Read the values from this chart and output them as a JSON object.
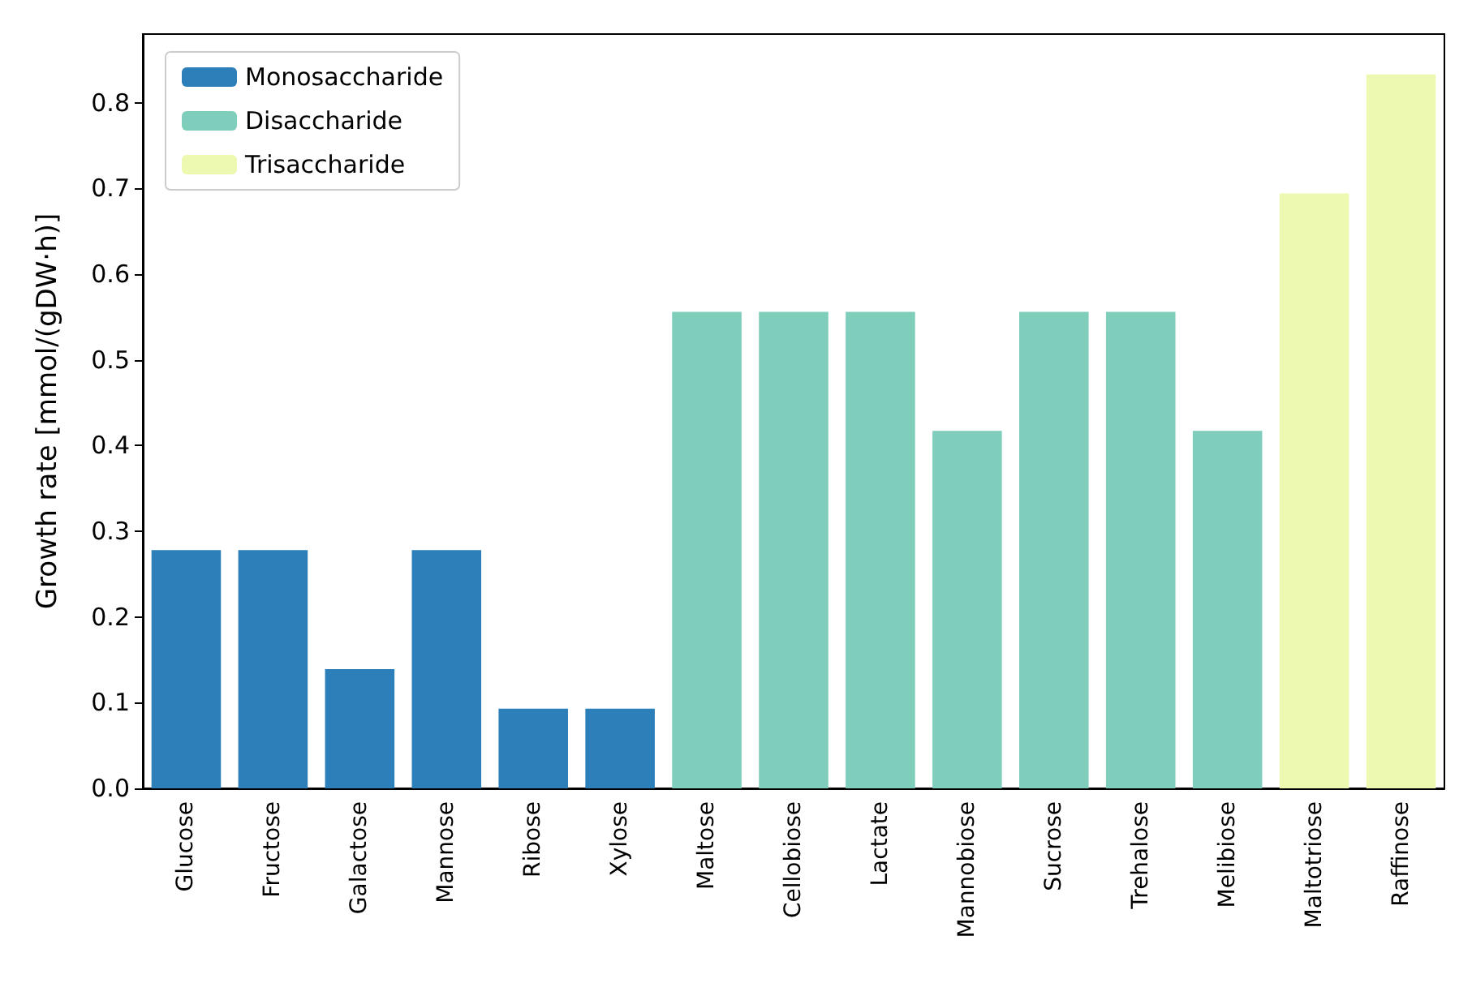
{
  "chart_data": {
    "type": "bar",
    "ylabel": "Growth rate [mmol/(gDW·h)]",
    "categories": [
      "Glucose",
      "Fructose",
      "Galactose",
      "Mannose",
      "Ribose",
      "Xylose",
      "Maltose",
      "Cellobiose",
      "Lactate",
      "Mannobiose",
      "Sucrose",
      "Trehalose",
      "Melibiose",
      "Maltotriose",
      "Raffinose"
    ],
    "series": [
      {
        "name": "Monosaccharide",
        "color": "#2c7fb8",
        "values": [
          0.278,
          0.278,
          0.139,
          0.278,
          0.093,
          0.093,
          null,
          null,
          null,
          null,
          null,
          null,
          null,
          null,
          null
        ]
      },
      {
        "name": "Disaccharide",
        "color": "#7fcdbb",
        "values": [
          null,
          null,
          null,
          null,
          null,
          null,
          0.556,
          0.556,
          0.556,
          0.417,
          0.556,
          0.556,
          0.417,
          null,
          null
        ]
      },
      {
        "name": "Trisaccharide",
        "color": "#edf8b1",
        "values": [
          null,
          null,
          null,
          null,
          null,
          null,
          null,
          null,
          null,
          null,
          null,
          null,
          null,
          0.694,
          0.833
        ]
      }
    ],
    "ylim": [
      0,
      0.88
    ],
    "yticks": [
      {
        "value": 0,
        "label": "0.0"
      },
      0.1,
      0.2,
      0.3,
      0.4,
      0.5,
      0.6,
      0.7,
      0.8
    ],
    "grid": false,
    "legend": "top left"
  }
}
